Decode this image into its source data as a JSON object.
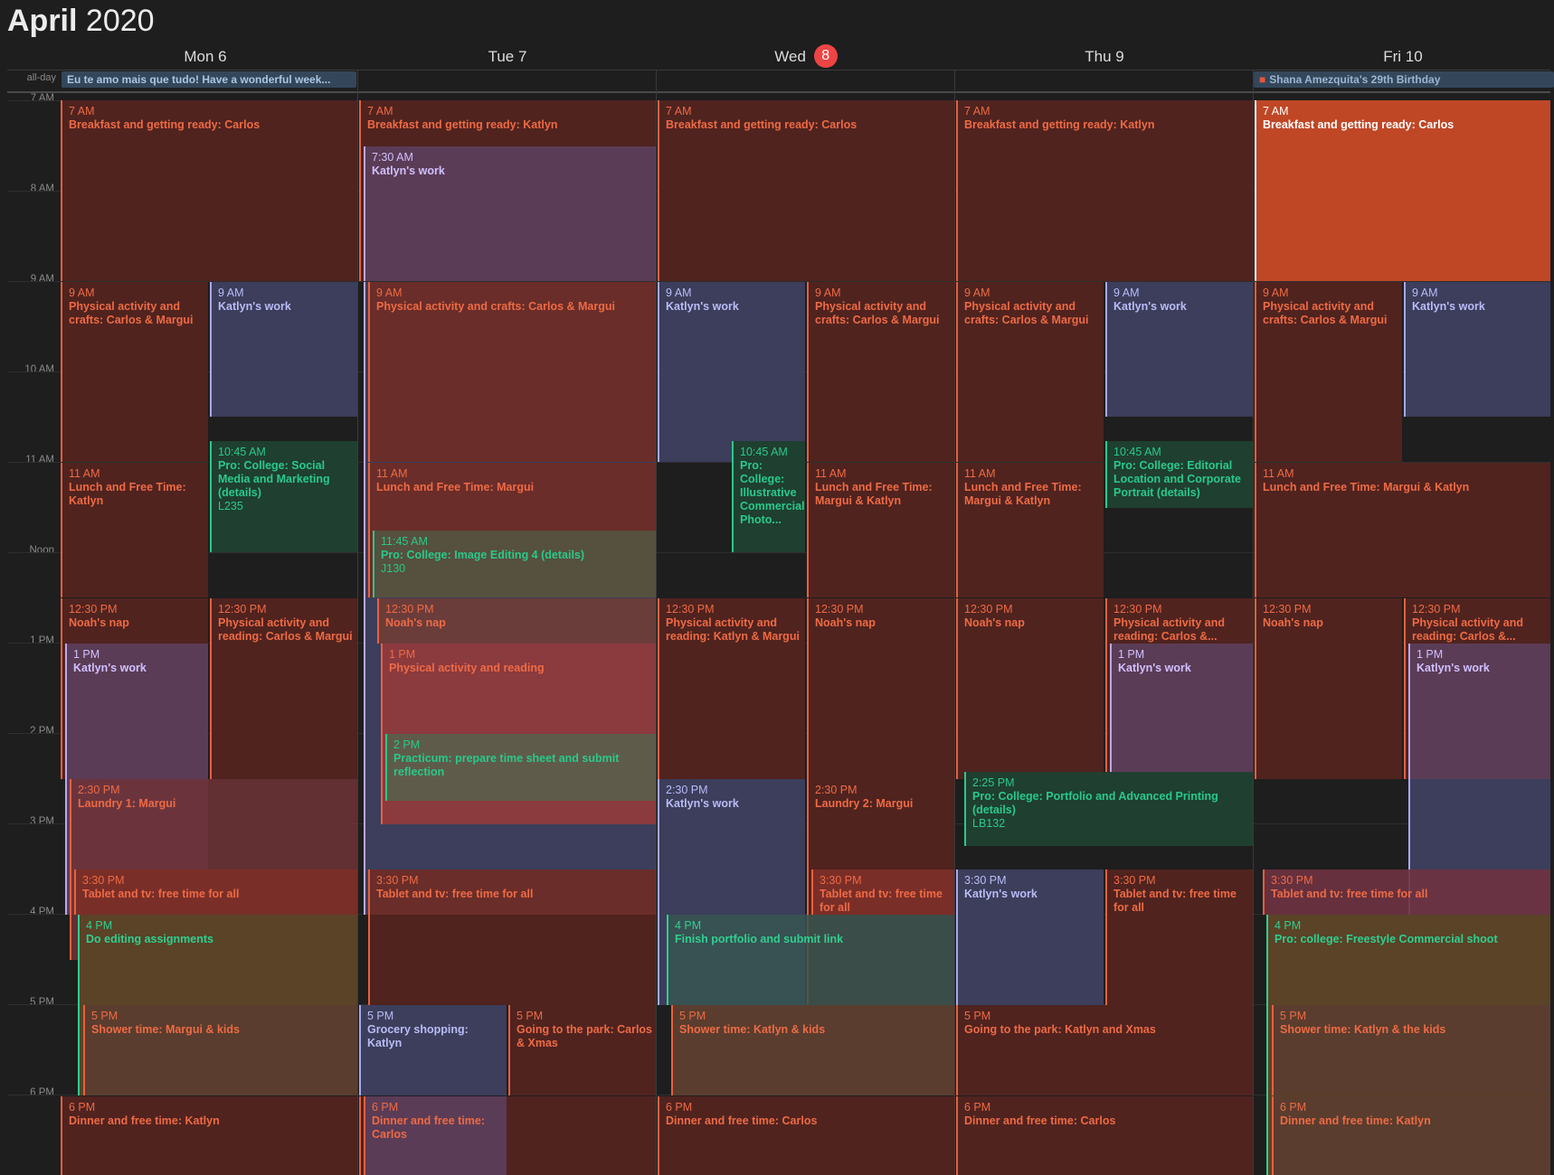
{
  "header": {
    "month": "April",
    "year": "2020"
  },
  "days": [
    {
      "label": "Mon 6"
    },
    {
      "label": "Tue 7"
    },
    {
      "label": "Wed",
      "badge": "8"
    },
    {
      "label": "Thu 9"
    },
    {
      "label": "Fri 10"
    }
  ],
  "allday": {
    "label": "all-day",
    "events": [
      {
        "text": "Eu te amo mais que tudo! Have a wonderful week..."
      },
      {
        "text": "Shana Amezquita's 29th Birthday",
        "icon": "gift-icon"
      }
    ]
  },
  "hours": [
    "7 AM",
    "8 AM",
    "9 AM",
    "10 AM",
    "11 AM",
    "Noon",
    "1 PM",
    "2 PM",
    "3 PM",
    "4 PM",
    "5 PM",
    "6 PM"
  ],
  "events": {
    "mon": [
      {
        "time": "7 AM",
        "name": "Breakfast and getting ready: Carlos"
      },
      {
        "time": "9 AM",
        "name": "Physical activity and crafts: Carlos & Margui"
      },
      {
        "time": "9 AM",
        "name": "Katlyn's work"
      },
      {
        "time": "10:45 AM",
        "name": "Pro: College: Social Media and Marketing (details)",
        "room": "L235"
      },
      {
        "time": "11 AM",
        "name": "Lunch and Free Time: Katlyn"
      },
      {
        "time": "12:30 PM",
        "name": "Noah's nap"
      },
      {
        "time": "12:30 PM",
        "name": "Physical activity and reading: Carlos & Margui"
      },
      {
        "time": "1 PM",
        "name": "Katlyn's work"
      },
      {
        "time": "2:30 PM",
        "name": "Laundry 1: Margui"
      },
      {
        "time": "3:30 PM",
        "name": "Tablet and tv: free time for all"
      },
      {
        "time": "4 PM",
        "name": "Do editing assignments"
      },
      {
        "time": "5 PM",
        "name": "Shower time: Margui & kids"
      },
      {
        "time": "6 PM",
        "name": "Dinner and free time: Katlyn"
      }
    ],
    "tue": [
      {
        "time": "7 AM",
        "name": "Breakfast and getting ready: Katlyn"
      },
      {
        "time": "7:30 AM",
        "name": "Katlyn's work"
      },
      {
        "time": "9 AM",
        "name": "Physical activity and crafts: Carlos & Margui"
      },
      {
        "time": "11 AM",
        "name": "Lunch and Free Time: Margui"
      },
      {
        "time": "11:45 AM",
        "name": "Pro: College: Image Editing 4 (details)",
        "room": "J130"
      },
      {
        "time": "12:30 PM",
        "name": "Noah's nap"
      },
      {
        "time": "1 PM",
        "name": "Physical activity and reading"
      },
      {
        "time": "2 PM",
        "name": "Practicum: prepare time sheet and submit reflection"
      },
      {
        "time": "3:30 PM",
        "name": "Tablet and tv: free time for all"
      },
      {
        "time": "5 PM",
        "name": "Grocery shopping: Katlyn"
      },
      {
        "time": "5 PM",
        "name": "Going to the park: Carlos & Xmas"
      },
      {
        "time": "6 PM",
        "name": "Dinner and free time: Carlos"
      }
    ],
    "wed": [
      {
        "time": "7 AM",
        "name": "Breakfast and getting ready: Carlos"
      },
      {
        "time": "9 AM",
        "name": "Katlyn's work"
      },
      {
        "time": "9 AM",
        "name": "Physical activity and crafts: Carlos & Margui"
      },
      {
        "time": "10:45 AM",
        "name": "Pro: College: Illustrative Commercial Photo..."
      },
      {
        "time": "11 AM",
        "name": "Lunch and Free Time: Margui & Katlyn"
      },
      {
        "time": "12:30 PM",
        "name": "Physical activity and reading: Katlyn & Margui"
      },
      {
        "time": "12:30 PM",
        "name": "Noah's nap"
      },
      {
        "time": "2:30 PM",
        "name": "Katlyn's work"
      },
      {
        "time": "2:30 PM",
        "name": "Laundry 2: Margui"
      },
      {
        "time": "3:30 PM",
        "name": "Tablet and tv: free time for all"
      },
      {
        "time": "4 PM",
        "name": "Finish portfolio and submit link"
      },
      {
        "time": "5 PM",
        "name": "Shower time: Katlyn & kids"
      },
      {
        "time": "6 PM",
        "name": "Dinner and free time: Carlos"
      }
    ],
    "thu": [
      {
        "time": "7 AM",
        "name": "Breakfast and getting ready: Katlyn"
      },
      {
        "time": "9 AM",
        "name": "Physical activity and crafts: Carlos & Margui"
      },
      {
        "time": "9 AM",
        "name": "Katlyn's work"
      },
      {
        "time": "10:45 AM",
        "name": "Pro: College: Editorial Location and Corporate Portrait (details)"
      },
      {
        "time": "11 AM",
        "name": "Lunch and Free Time: Margui & Katlyn"
      },
      {
        "time": "12:30 PM",
        "name": "Noah's nap"
      },
      {
        "time": "12:30 PM",
        "name": "Physical activity and reading: Carlos &..."
      },
      {
        "time": "1 PM",
        "name": "Katlyn's work"
      },
      {
        "time": "2:25 PM",
        "name": "Pro: College: Portfolio and Advanced Printing (details)",
        "room": "LB132"
      },
      {
        "time": "3:30 PM",
        "name": "Katlyn's work"
      },
      {
        "time": "3:30 PM",
        "name": "Tablet and tv: free time for all"
      },
      {
        "time": "5 PM",
        "name": "Going to the park: Katlyn and Xmas"
      },
      {
        "time": "6 PM",
        "name": "Dinner and free time: Carlos"
      }
    ],
    "fri": [
      {
        "time": "7 AM",
        "name": "Breakfast and getting ready: Carlos"
      },
      {
        "time": "9 AM",
        "name": "Physical activity and crafts: Carlos & Margui"
      },
      {
        "time": "9 AM",
        "name": "Katlyn's work"
      },
      {
        "time": "11 AM",
        "name": "Lunch and Free Time: Margui & Katlyn"
      },
      {
        "time": "12:30 PM",
        "name": "Noah's nap"
      },
      {
        "time": "12:30 PM",
        "name": "Physical activity and reading: Carlos &..."
      },
      {
        "time": "1 PM",
        "name": "Katlyn's work"
      },
      {
        "time": "3:30 PM",
        "name": "Tablet and tv: free time for all"
      },
      {
        "time": "4 PM",
        "name": "Pro: college: Freestyle Commercial shoot"
      },
      {
        "time": "5 PM",
        "name": "Shower time: Katlyn & the kids"
      },
      {
        "time": "6 PM",
        "name": "Dinner and free time: Katlyn"
      }
    ]
  }
}
